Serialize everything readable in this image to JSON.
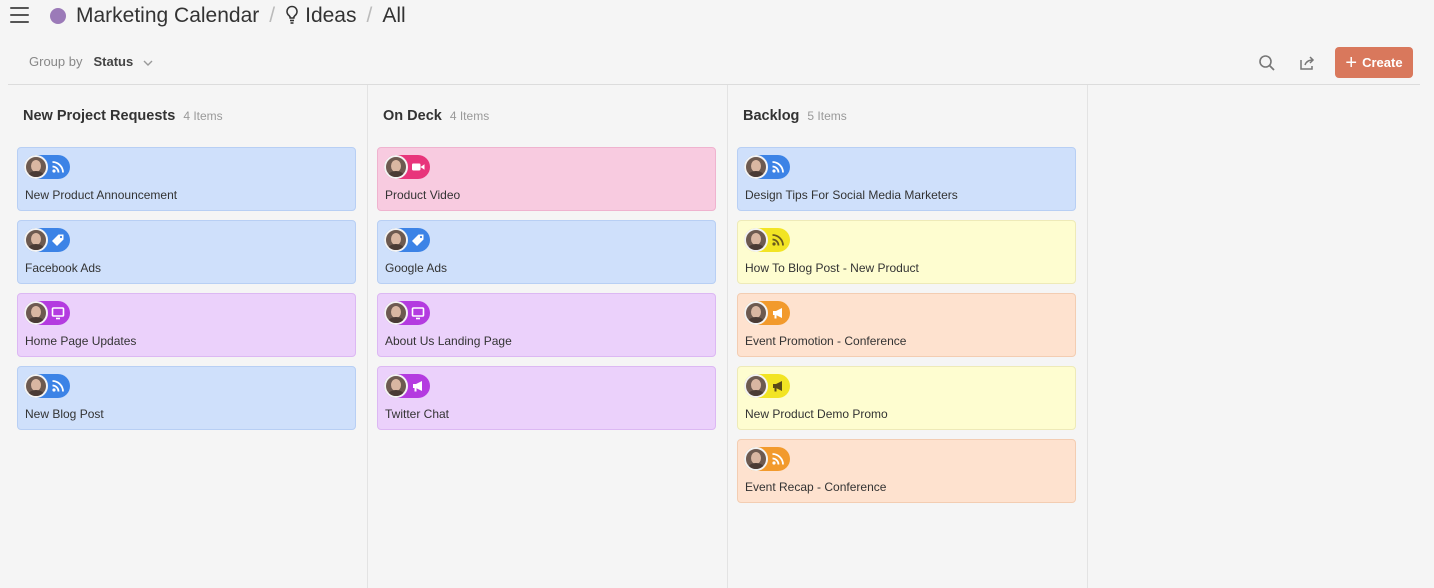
{
  "breadcrumb": {
    "project": "Marketing Calendar",
    "section": "Ideas",
    "view": "All"
  },
  "toolbar": {
    "group_by_label": "Group by",
    "group_by_value": "Status",
    "create_label": "Create"
  },
  "colors": {
    "accent": "#d9785c",
    "project_dot": "#9b7ab8"
  },
  "columns": [
    {
      "title": "New Project Requests",
      "count": "4 Items",
      "cards": [
        {
          "label": "New Product Announcement",
          "color": "blue",
          "icon": "rss-icon"
        },
        {
          "label": "Facebook Ads",
          "color": "blue",
          "icon": "tag-icon"
        },
        {
          "label": "Home Page Updates",
          "color": "purple",
          "icon": "monitor-icon"
        },
        {
          "label": "New Blog Post",
          "color": "blue",
          "icon": "rss-icon"
        }
      ]
    },
    {
      "title": "On Deck",
      "count": "4 Items",
      "cards": [
        {
          "label": "Product Video",
          "color": "pink",
          "icon": "video-icon"
        },
        {
          "label": "Google Ads",
          "color": "blue",
          "icon": "tag-icon"
        },
        {
          "label": "About Us Landing Page",
          "color": "purple",
          "icon": "monitor-icon"
        },
        {
          "label": "Twitter Chat",
          "color": "purple",
          "icon": "megaphone-icon"
        }
      ]
    },
    {
      "title": "Backlog",
      "count": "5 Items",
      "cards": [
        {
          "label": "Design Tips For Social Media Marketers",
          "color": "blue",
          "icon": "rss-icon"
        },
        {
          "label": "How To Blog Post - New Product",
          "color": "yellow",
          "icon": "rss-icon"
        },
        {
          "label": "Event Promotion - Conference",
          "color": "orange",
          "icon": "megaphone-icon"
        },
        {
          "label": "New Product Demo Promo",
          "color": "yellow",
          "icon": "megaphone-icon"
        },
        {
          "label": "Event Recap - Conference",
          "color": "orange",
          "icon": "rss-icon"
        }
      ]
    }
  ]
}
